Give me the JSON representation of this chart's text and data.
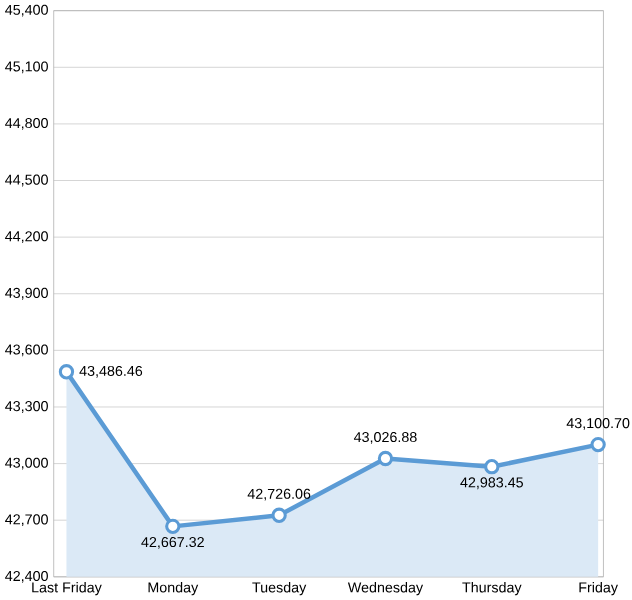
{
  "chart_data": {
    "type": "area",
    "categories": [
      "Last Friday",
      "Monday",
      "Tuesday",
      "Wednesday",
      "Thursday",
      "Friday"
    ],
    "series": [
      {
        "color": "#5b9bd5",
        "values": [
          43486.46,
          42667.32,
          42726.06,
          43026.88,
          42983.45,
          43100.7
        ],
        "value_labels": [
          "43,486.46",
          "42,667.32",
          "42,726.06",
          "43,026.88",
          "42,983.45",
          "43,100.70"
        ]
      }
    ],
    "ylim": [
      42400,
      45400
    ],
    "yticks": [
      {
        "value": 42400,
        "label": "42,400"
      },
      {
        "value": 42700,
        "label": "42,700"
      },
      {
        "value": 43000,
        "label": "43,000"
      },
      {
        "value": 43300,
        "label": "43,300"
      },
      {
        "value": 43600,
        "label": "43,600"
      },
      {
        "value": 43900,
        "label": "43,900"
      },
      {
        "value": 44200,
        "label": "44,200"
      },
      {
        "value": 44500,
        "label": "44,500"
      },
      {
        "value": 44800,
        "label": "44,800"
      },
      {
        "value": 45100,
        "label": "45,100"
      },
      {
        "value": 45400,
        "label": "45,400"
      }
    ],
    "grid": "y",
    "marker": "circle",
    "line_style": "solid"
  }
}
